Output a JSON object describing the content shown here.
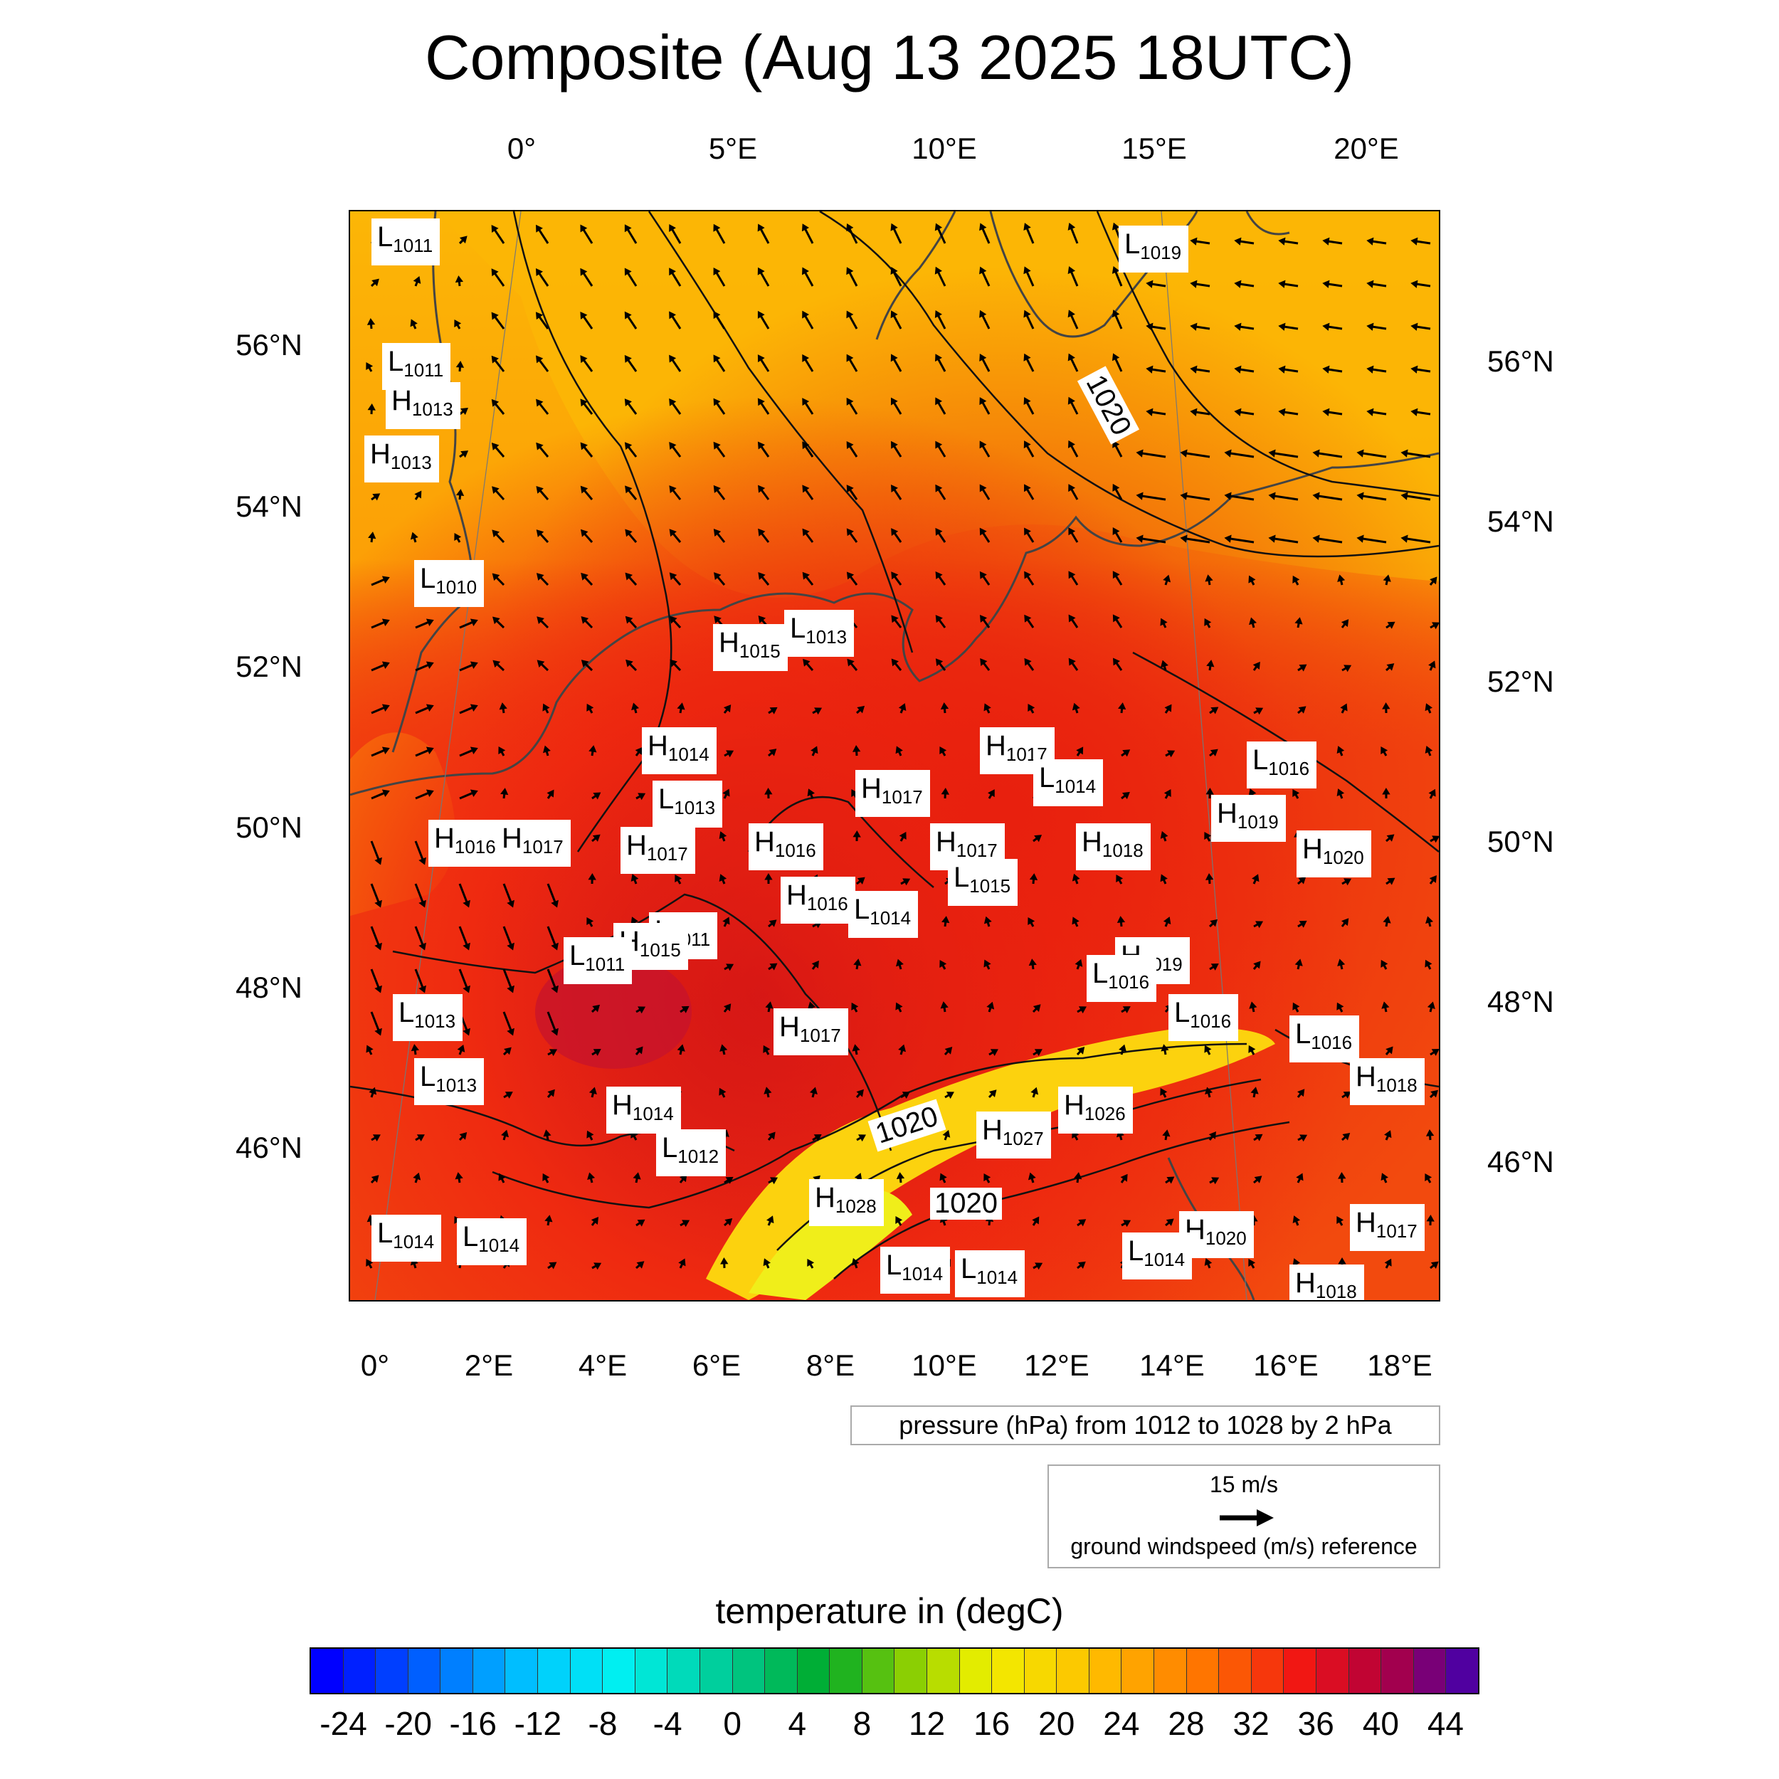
{
  "title": "Composite (Aug 13 2025 18UTC)",
  "top_axis": [
    "0°",
    "5°E",
    "10°E",
    "15°E",
    "20°E"
  ],
  "bottom_axis": [
    "0°",
    "2°E",
    "4°E",
    "6°E",
    "8°E",
    "10°E",
    "12°E",
    "14°E",
    "16°E",
    "18°E"
  ],
  "left_axis": [
    "56°N",
    "54°N",
    "52°N",
    "50°N",
    "48°N",
    "46°N"
  ],
  "right_axis": [
    "56°N",
    "54°N",
    "52°N",
    "50°N",
    "48°N",
    "46°N"
  ],
  "isobar_labels": [
    "1020",
    "1020",
    "1020"
  ],
  "pressure_centers": [
    {
      "type": "L",
      "value": "1011"
    },
    {
      "type": "L",
      "value": "1019"
    },
    {
      "type": "L",
      "value": "1011"
    },
    {
      "type": "H",
      "value": "1013"
    },
    {
      "type": "H",
      "value": "1013"
    },
    {
      "type": "L",
      "value": "1010"
    },
    {
      "type": "H",
      "value": "1015"
    },
    {
      "type": "L",
      "value": "1013"
    },
    {
      "type": "H",
      "value": "1014"
    },
    {
      "type": "L",
      "value": "1013"
    },
    {
      "type": "H",
      "value": "1017"
    },
    {
      "type": "L",
      "value": "1014"
    },
    {
      "type": "L",
      "value": "1016"
    },
    {
      "type": "H",
      "value": "1017"
    },
    {
      "type": "H",
      "value": "1019"
    },
    {
      "type": "H",
      "value": "1016"
    },
    {
      "type": "H",
      "value": "1017"
    },
    {
      "type": "H",
      "value": "1017"
    },
    {
      "type": "H",
      "value": "1016"
    },
    {
      "type": "H",
      "value": "1017"
    },
    {
      "type": "H",
      "value": "1018"
    },
    {
      "type": "H",
      "value": "1020"
    },
    {
      "type": "L",
      "value": "1015"
    },
    {
      "type": "H",
      "value": "1016"
    },
    {
      "type": "L",
      "value": "1014"
    },
    {
      "type": "L",
      "value": "1011"
    },
    {
      "type": "H",
      "value": "1015"
    },
    {
      "type": "L",
      "value": "1011"
    },
    {
      "type": "H",
      "value": "1019"
    },
    {
      "type": "L",
      "value": "1016"
    },
    {
      "type": "L",
      "value": "1013"
    },
    {
      "type": "L",
      "value": "1016"
    },
    {
      "type": "L",
      "value": "1016"
    },
    {
      "type": "H",
      "value": "1017"
    },
    {
      "type": "L",
      "value": "1013"
    },
    {
      "type": "H",
      "value": "1018"
    },
    {
      "type": "H",
      "value": "1014"
    },
    {
      "type": "H",
      "value": "1026"
    },
    {
      "type": "H",
      "value": "1027"
    },
    {
      "type": "L",
      "value": "1012"
    },
    {
      "type": "H",
      "value": "1028"
    },
    {
      "type": "L",
      "value": "1014"
    },
    {
      "type": "L",
      "value": "1014"
    },
    {
      "type": "H",
      "value": "1020"
    },
    {
      "type": "H",
      "value": "1017"
    },
    {
      "type": "L",
      "value": "1014"
    },
    {
      "type": "L",
      "value": "1014"
    },
    {
      "type": "L",
      "value": "1014"
    },
    {
      "type": "H",
      "value": "1018"
    }
  ],
  "pressure_info": "pressure (hPa) from 1012 to 1028 by 2 hPa",
  "wind_reference": {
    "speed": "15 m/s",
    "label": "ground windspeed (m/s) reference"
  },
  "colorbar": {
    "title": "temperature in (degC)",
    "ticks": [
      "-24",
      "-20",
      "-16",
      "-12",
      "-8",
      "-4",
      "0",
      "4",
      "8",
      "12",
      "16",
      "20",
      "24",
      "28",
      "32",
      "36",
      "40",
      "44"
    ],
    "range": [
      -26,
      46
    ],
    "step": 2
  }
}
